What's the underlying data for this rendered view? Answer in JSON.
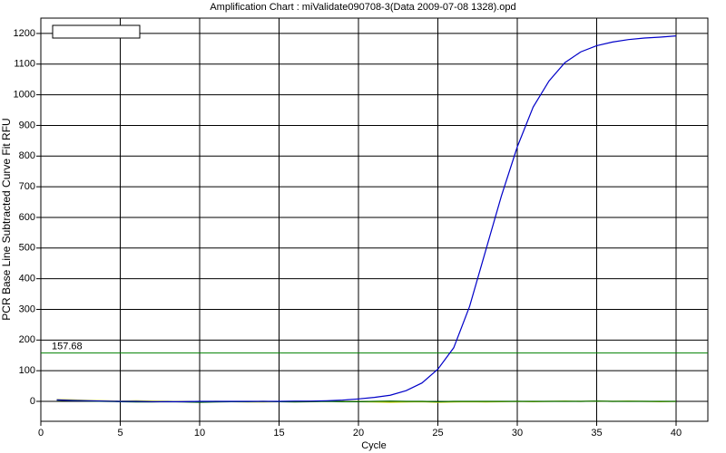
{
  "chart_data": {
    "type": "line",
    "title": "Amplification Chart : miValidate090708-3(Data 2009-07-08 1328).opd",
    "x_label": "Cycle",
    "y_label": "PCR Base Line Subtracted Curve Fit RFU",
    "x": [
      1,
      2,
      3,
      4,
      5,
      6,
      7,
      8,
      9,
      10,
      11,
      12,
      13,
      14,
      15,
      16,
      17,
      18,
      19,
      20,
      21,
      22,
      23,
      24,
      25,
      26,
      27,
      28,
      29,
      30,
      31,
      32,
      33,
      34,
      35,
      36,
      37,
      38,
      39,
      40
    ],
    "series": [
      {
        "color": "#c8d400",
        "values": [
          6,
          5,
          3,
          2,
          1,
          2,
          1,
          0,
          -1,
          -2,
          0,
          -1,
          -2,
          -2,
          -1,
          -1,
          0,
          1,
          0,
          -1,
          -2,
          -3,
          -2,
          -1,
          -3,
          -2,
          -1,
          -2,
          -1,
          0,
          -1,
          0,
          1,
          0,
          1,
          0,
          1,
          0,
          -1,
          0
        ]
      },
      {
        "color": "#006400",
        "values": [
          4,
          2,
          1,
          0,
          -1,
          -2,
          -2,
          -1,
          -2,
          -3,
          -2,
          -1,
          -1,
          0,
          -1,
          -2,
          -1,
          0,
          -1,
          -1,
          0,
          1,
          0,
          0,
          -1,
          0,
          0,
          0,
          0,
          0,
          0,
          0,
          0,
          0,
          1,
          0,
          0,
          0,
          0,
          0
        ]
      },
      {
        "color": "#0000c8",
        "values": [
          5,
          3,
          2,
          1,
          0,
          0,
          -1,
          -1,
          -1,
          0,
          0,
          0,
          0,
          0,
          0,
          1,
          1,
          2,
          4,
          8,
          13,
          20,
          35,
          60,
          105,
          175,
          310,
          490,
          670,
          830,
          960,
          1045,
          1105,
          1140,
          1160,
          1172,
          1180,
          1185,
          1188,
          1192
        ]
      }
    ],
    "threshold": 157.68,
    "threshold_color": "#008000",
    "xlim": [
      0,
      42
    ],
    "ylim": [
      -65,
      1250
    ],
    "xticks": [
      0,
      5,
      10,
      15,
      20,
      25,
      30,
      35,
      40
    ],
    "yticks": [
      0,
      100,
      200,
      300,
      400,
      500,
      600,
      700,
      800,
      900,
      1000,
      1100,
      1200
    ],
    "grid": true
  }
}
